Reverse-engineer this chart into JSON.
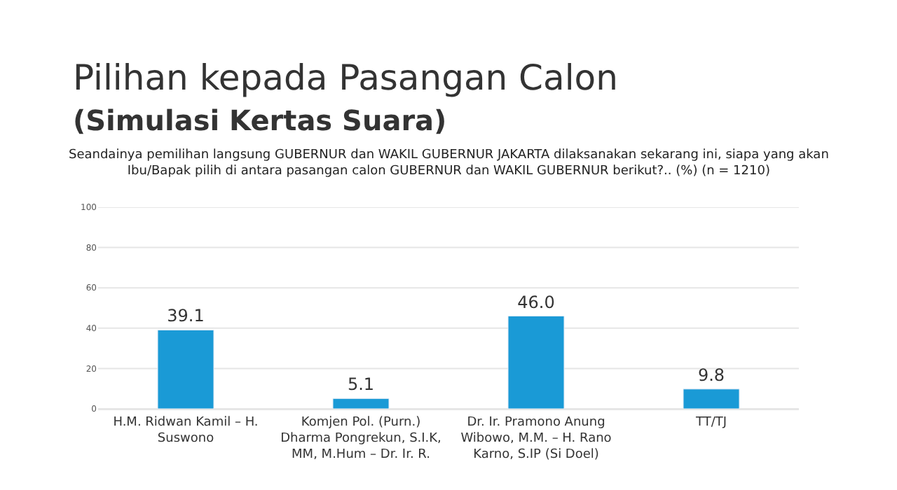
{
  "chart_data": {
    "type": "bar",
    "title": "Pilihan kepada Pasangan Calon",
    "subtitle": "(Simulasi Kertas Suara)",
    "annotations": [
      "Seandainya pemilihan langsung GUBERNUR dan WAKIL GUBERNUR JAKARTA dilaksanakan sekarang ini, siapa yang akan Ibu/Bapak pilih di antara pasangan calon GUBERNUR dan WAKIL GUBERNUR berikut?.. (%) (n = 1210)"
    ],
    "categories": [
      "H.M. Ridwan Kamil – H. Suswono",
      "Komjen Pol. (Purn.) Dharma Pongrekun, S.I.K, MM, M.Hum – Dr. Ir. R.",
      "Dr. Ir. Pramono Anung Wibowo, M.M. – H. Rano Karno, S.IP (Si Doel)",
      "TT/TJ"
    ],
    "values": [
      39.1,
      5.1,
      46.0,
      9.8
    ],
    "color": "#1a9ad6",
    "value_labels": [
      "39.1",
      "5.1",
      "46.0",
      "9.8"
    ],
    "ylim": [
      0,
      100
    ],
    "yticks": [
      0,
      20,
      40,
      60,
      80,
      100
    ],
    "grid": "y",
    "legend": false
  }
}
